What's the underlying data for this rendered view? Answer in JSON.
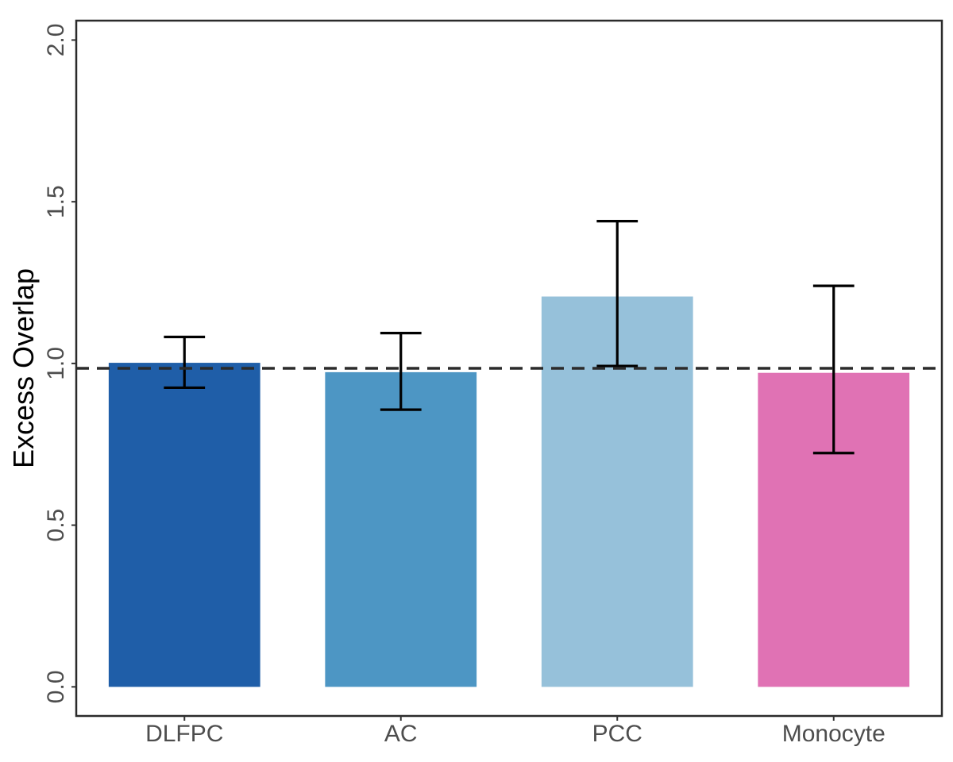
{
  "chart_data": {
    "type": "bar",
    "title": "",
    "xlabel": "",
    "ylabel": "Excess Overlap",
    "categories": [
      "DLFPC",
      "AC",
      "PCC",
      "Monocyte"
    ],
    "values": [
      1.002,
      0.973,
      1.207,
      0.971
    ],
    "error_low": [
      0.925,
      0.857,
      0.992,
      0.723
    ],
    "error_high": [
      1.082,
      1.094,
      1.44,
      1.24
    ],
    "colors": [
      "#1f5ea8",
      "#4d96c4",
      "#96c1da",
      "#e072b4"
    ],
    "ylim": [
      -0.09,
      2.06
    ],
    "yticks": [
      0.0,
      0.5,
      1.0,
      1.5,
      2.0
    ],
    "ytick_labels": [
      "0.0",
      "0.5",
      "1.0",
      "1.5",
      "2.0"
    ],
    "reference_line": 0.985,
    "reference_line_style": "dashed",
    "grid": false,
    "legend": "none"
  }
}
